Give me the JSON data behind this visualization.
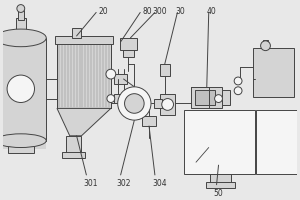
{
  "bg_color": "#e8e8e8",
  "line_color": "#444444",
  "fill_light": "#d4d4d4",
  "fill_mid": "#c0c0c0",
  "fill_dark": "#aaaaaa",
  "white": "#f5f5f5",
  "figsize": [
    3.0,
    2.0
  ],
  "dpi": 100
}
